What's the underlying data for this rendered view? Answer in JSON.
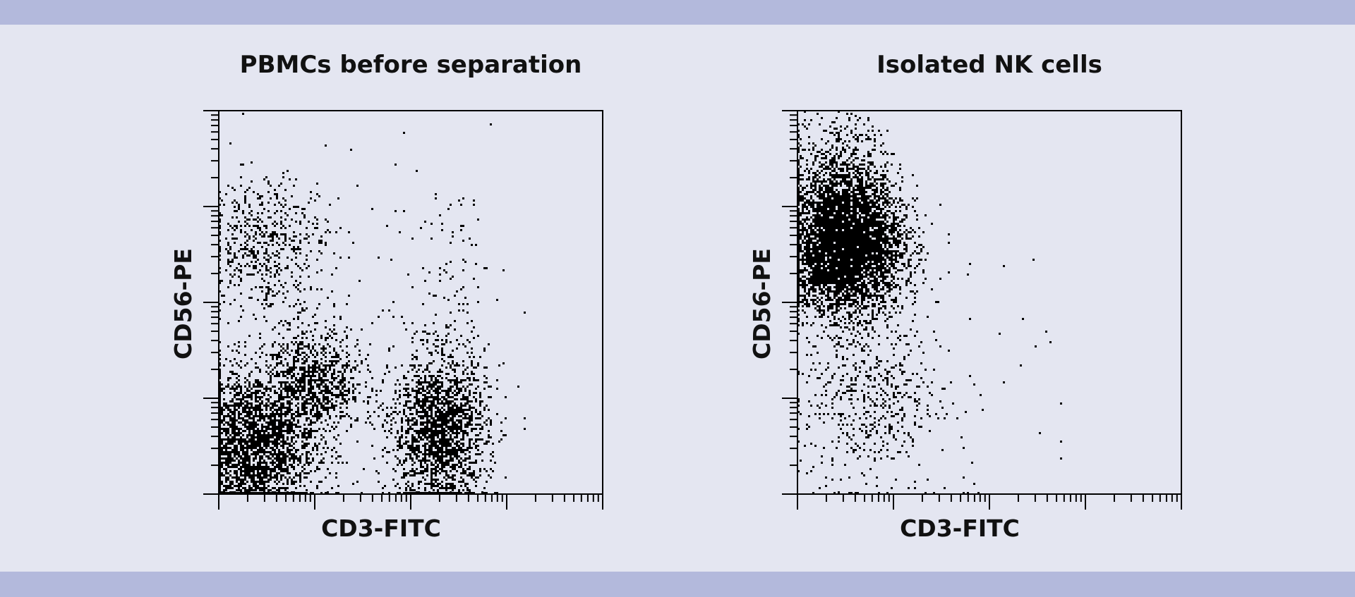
{
  "colors": {
    "background": "#e4e6f1",
    "band": "#b3b9dc",
    "dots": "#000000"
  },
  "chart_data": [
    {
      "type": "scatter",
      "title": "PBMCs before separation",
      "xlabel": "CD3-FITC",
      "ylabel": "CD56-PE",
      "x_scale": "log",
      "y_scale": "log",
      "xlim_decades": [
        0,
        4
      ],
      "ylim_decades": [
        0,
        4
      ],
      "tick_labels": "none",
      "grid": false,
      "populations": [
        {
          "x": 0.35,
          "y": 0.5,
          "sx": 0.32,
          "sy": 0.4,
          "n": 2600
        },
        {
          "x": 1.0,
          "y": 1.15,
          "sx": 0.25,
          "sy": 0.3,
          "n": 900
        },
        {
          "x": 0.5,
          "y": 2.6,
          "sx": 0.3,
          "sy": 0.35,
          "n": 550
        },
        {
          "x": 2.3,
          "y": 0.65,
          "sx": 0.25,
          "sy": 0.4,
          "n": 2000
        },
        {
          "x": 2.45,
          "y": 2.0,
          "sx": 0.18,
          "sy": 0.6,
          "n": 90
        },
        {
          "x": 1.2,
          "y": 1.9,
          "sx": 0.8,
          "sy": 0.9,
          "n": 150
        }
      ]
    },
    {
      "type": "scatter",
      "title": "Isolated NK cells",
      "xlabel": "CD3-FITC",
      "ylabel": "CD56-PE",
      "x_scale": "log",
      "y_scale": "log",
      "xlim_decades": [
        0,
        4
      ],
      "ylim_decades": [
        0,
        4
      ],
      "tick_labels": "none",
      "grid": false,
      "populations": [
        {
          "x": 0.5,
          "y": 2.6,
          "sx": 0.3,
          "sy": 0.35,
          "n": 5000
        },
        {
          "x": 0.45,
          "y": 3.4,
          "sx": 0.25,
          "sy": 0.3,
          "n": 500
        },
        {
          "x": 0.75,
          "y": 1.0,
          "sx": 0.35,
          "sy": 0.5,
          "n": 550
        },
        {
          "x": 1.8,
          "y": 1.2,
          "sx": 0.6,
          "sy": 0.8,
          "n": 40
        }
      ]
    }
  ]
}
